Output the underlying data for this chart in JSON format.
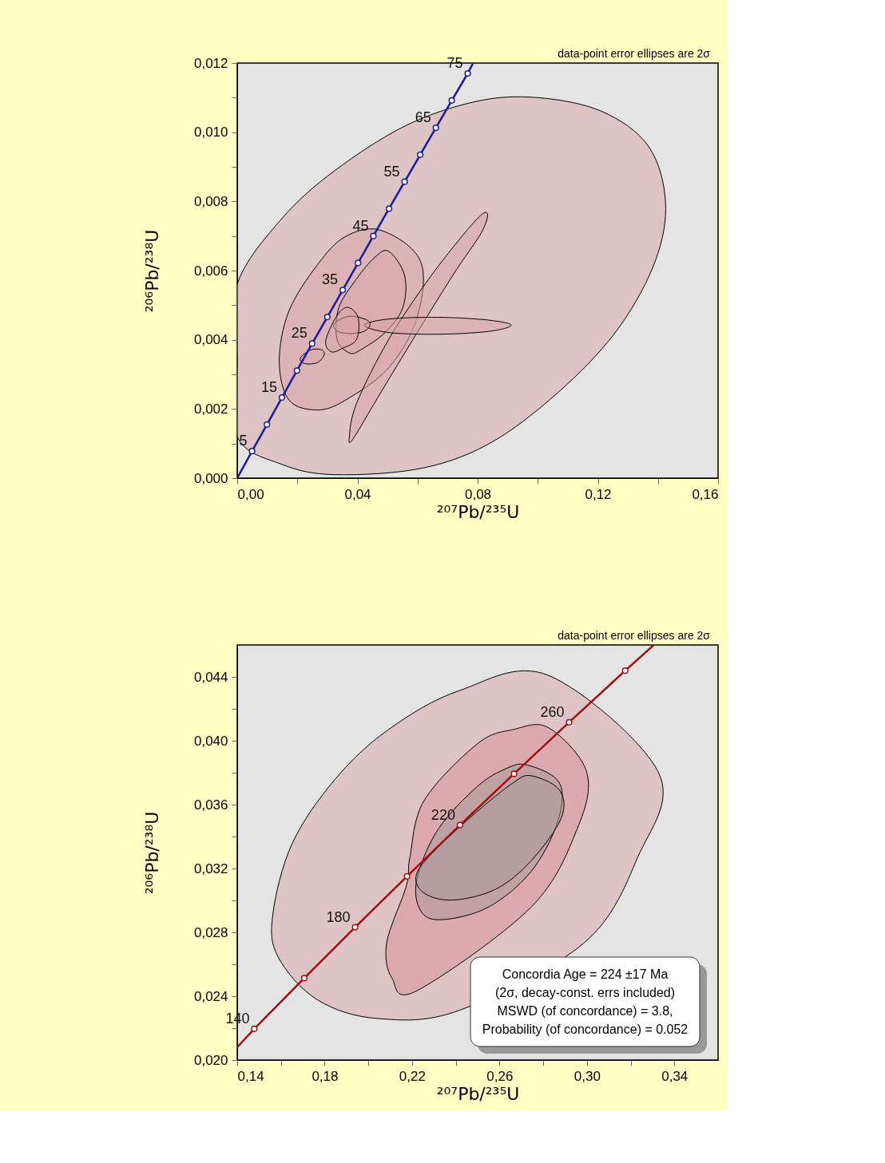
{
  "chart_data": [
    {
      "type": "scatter",
      "xlabel": "²⁰⁷Pb/²³⁵U",
      "ylabel": "²⁰⁶Pb/²³⁸U",
      "xlim": [
        0,
        0.16
      ],
      "ylim": [
        0,
        0.012
      ],
      "xticks": [
        {
          "value": 0,
          "label": "0,00"
        },
        {
          "value": 0.02,
          "label": null
        },
        {
          "value": 0.04,
          "label": "0,04"
        },
        {
          "value": 0.06,
          "label": null
        },
        {
          "value": 0.08,
          "label": "0,08"
        },
        {
          "value": 0.1,
          "label": null
        },
        {
          "value": 0.12,
          "label": "0,12"
        },
        {
          "value": 0.14,
          "label": null
        },
        {
          "value": 0.16,
          "label": "0,16"
        }
      ],
      "yticks": [
        {
          "value": 0,
          "label": "0,000"
        },
        {
          "value": 0.001,
          "label": null
        },
        {
          "value": 0.002,
          "label": "0,002"
        },
        {
          "value": 0.003,
          "label": null
        },
        {
          "value": 0.004,
          "label": "0,004"
        },
        {
          "value": 0.005,
          "label": null
        },
        {
          "value": 0.006,
          "label": "0,006"
        },
        {
          "value": 0.007,
          "label": null
        },
        {
          "value": 0.008,
          "label": "0,008"
        },
        {
          "value": 0.009,
          "label": null
        },
        {
          "value": 0.01,
          "label": "0,010"
        },
        {
          "value": 0.011,
          "label": null
        },
        {
          "value": 0.012,
          "label": "0,012"
        }
      ],
      "series": [
        {
          "type": "area",
          "color": "#d9a3a7",
          "x": [
            0,
            0.0148,
            0.0326,
            0.0563,
            0.08,
            0.1001,
            0.1214,
            0.1368,
            0.1425,
            0.1392,
            0.1274,
            0.1096,
            0.0859,
            0.0622,
            0.0326,
            0.0148,
            0,
            0
          ],
          "values": [
            0.0056,
            0.0075,
            0.0089,
            0.0102,
            0.0109,
            0.011,
            0.0106,
            0.0096,
            0.008,
            0.0063,
            0.0044,
            0.0027,
            0.0011,
            0.0003,
            0.0001,
            0.0004,
            0.0012,
            0.0034
          ]
        },
        {
          "type": "area",
          "color": "#d9a3a7",
          "x": [
            0.048,
            0.061,
            0.0598,
            0.0504,
            0.0361,
            0.0267,
            0.0172,
            0.014,
            0.0172,
            0.0267,
            0.0361
          ],
          "values": [
            0.00716,
            0.00627,
            0.00462,
            0.00319,
            0.00226,
            0.00197,
            0.00226,
            0.00339,
            0.00483,
            0.00617,
            0.00699
          ]
        },
        {
          "type": "area",
          "color": "#d9a3a7",
          "x": [
            0.0504,
            0.0557,
            0.0551,
            0.0492,
            0.0409,
            0.0373,
            0.0332,
            0.0338,
            0.0397,
            0.0456
          ],
          "values": [
            0.00656,
            0.00586,
            0.00493,
            0.00421,
            0.0037,
            0.00362,
            0.00401,
            0.00493,
            0.00576,
            0.00637
          ]
        },
        {
          "type": "area",
          "color": "#d9a3a7",
          "x": [
            0.0832,
            0.0812,
            0.0717,
            0.0563,
            0.0456,
            0.0385,
            0.0373,
            0.0397,
            0.0504,
            0.0646,
            0.0788
          ],
          "values": [
            0.00766,
            0.00709,
            0.00586,
            0.0037,
            0.00216,
            0.00113,
            0.00118,
            0.00216,
            0.00401,
            0.00586,
            0.0074
          ]
        },
        {
          "type": "area",
          "color": "#d9a3a7",
          "x": [
            0.0423,
            0.0504,
            0.0669,
            0.0835,
            0.0912,
            0.0835,
            0.0669,
            0.0504
          ],
          "values": [
            0.00442,
            0.0046,
            0.00465,
            0.00457,
            0.00442,
            0.00424,
            0.00416,
            0.00421
          ]
        },
        {
          "type": "area",
          "color": "#d9a3a7",
          "x": [
            0.032,
            0.035,
            0.0385,
            0.0432,
            0.0442,
            0.0421,
            0.0379,
            0.0338
          ],
          "values": [
            0.00442,
            0.00462,
            0.00468,
            0.00457,
            0.00442,
            0.00424,
            0.00418,
            0.00423
          ]
        },
        {
          "type": "area",
          "color": "#d9a3a7",
          "x": [
            0.0373,
            0.0403,
            0.0397,
            0.035,
            0.0314,
            0.0294,
            0.0314,
            0.0344
          ],
          "values": [
            0.00493,
            0.00462,
            0.00401,
            0.00375,
            0.00365,
            0.00391,
            0.00442,
            0.00483
          ]
        },
        {
          "type": "area",
          "color": "#d9a3a7",
          "x": [
            0.021,
            0.0243,
            0.0278,
            0.029,
            0.0267,
            0.0225
          ],
          "values": [
            0.00347,
            0.0037,
            0.00372,
            0.00358,
            0.00334,
            0.00331
          ]
        },
        {
          "type": "line",
          "color": "#1a1a9c",
          "marker": "none",
          "x": [
            0,
            0.00494,
            0.0099,
            0.01488,
            0.01989,
            0.02493,
            0.03,
            0.0351,
            0.0402,
            0.0453,
            0.0505,
            0.0557,
            0.0609,
            0.0661,
            0.0714,
            0.0767,
            0.0785
          ],
          "values": [
            0,
            0.00078,
            0.00155,
            0.00233,
            0.00311,
            0.00389,
            0.00466,
            0.00544,
            0.00622,
            0.007,
            0.00779,
            0.00857,
            0.00935,
            0.01013,
            0.01092,
            0.0117,
            0.012
          ]
        },
        {
          "type": "scatter",
          "color": "#1a1a9c",
          "marker": "circle",
          "x": [
            0.00494,
            0.0099,
            0.01488,
            0.01989,
            0.02493,
            0.03,
            0.0351,
            0.0402,
            0.0453,
            0.0505,
            0.0557,
            0.0609,
            0.0661,
            0.0714,
            0.0767
          ],
          "values": [
            0.00078,
            0.00155,
            0.00233,
            0.00311,
            0.00389,
            0.00466,
            0.00544,
            0.00622,
            0.007,
            0.00779,
            0.00857,
            0.00935,
            0.01013,
            0.01092,
            0.0117
          ]
        }
      ],
      "annotations": [
        "data-point error ellipses are 2σ",
        {
          "text": "5",
          "x": 0.00494,
          "y": 0.00078
        },
        {
          "text": "15",
          "x": 0.01488,
          "y": 0.00233
        },
        {
          "text": "25",
          "x": 0.02493,
          "y": 0.00389
        },
        {
          "text": "35",
          "x": 0.0351,
          "y": 0.00544
        },
        {
          "text": "45",
          "x": 0.0453,
          "y": 0.007
        },
        {
          "text": "55",
          "x": 0.0557,
          "y": 0.00857
        },
        {
          "text": "65",
          "x": 0.0661,
          "y": 0.01013
        },
        {
          "text": "75",
          "x": 0.0767,
          "y": 0.0117
        }
      ]
    },
    {
      "type": "scatter",
      "xlabel": "²⁰⁷Pb/²³⁵U",
      "ylabel": "²⁰⁶Pb/²³⁸U",
      "xlim": [
        0.14,
        0.36
      ],
      "ylim": [
        0.02,
        0.046
      ],
      "xticks": [
        {
          "value": 0.14,
          "label": "0,14"
        },
        {
          "value": 0.16,
          "label": null
        },
        {
          "value": 0.18,
          "label": "0,18"
        },
        {
          "value": 0.2,
          "label": null
        },
        {
          "value": 0.22,
          "label": "0,22"
        },
        {
          "value": 0.24,
          "label": null
        },
        {
          "value": 0.26,
          "label": "0,26"
        },
        {
          "value": 0.28,
          "label": null
        },
        {
          "value": 0.3,
          "label": "0,30"
        },
        {
          "value": 0.32,
          "label": null
        },
        {
          "value": 0.34,
          "label": "0,34"
        }
      ],
      "yticks": [
        {
          "value": 0.02,
          "label": "0,020"
        },
        {
          "value": 0.022,
          "label": null
        },
        {
          "value": 0.024,
          "label": "0,024"
        },
        {
          "value": 0.026,
          "label": null
        },
        {
          "value": 0.028,
          "label": "0,028"
        },
        {
          "value": 0.03,
          "label": null
        },
        {
          "value": 0.032,
          "label": "0,032"
        },
        {
          "value": 0.034,
          "label": null
        },
        {
          "value": 0.036,
          "label": "0,036"
        },
        {
          "value": 0.038,
          "label": null
        },
        {
          "value": 0.04,
          "label": "0,040"
        },
        {
          "value": 0.042,
          "label": null
        },
        {
          "value": 0.044,
          "label": "0,044"
        }
      ],
      "series": [
        {
          "type": "area",
          "color": "#d9a3a7",
          "x": [
            0.2825,
            0.3327,
            0.3232,
            0.2988,
            0.2418,
            0.2043,
            0.1766,
            0.1587,
            0.1563,
            0.1652,
            0.1848,
            0.2092,
            0.2418
          ],
          "values": [
            0.04409,
            0.03803,
            0.03269,
            0.02735,
            0.02312,
            0.0226,
            0.02378,
            0.02646,
            0.02913,
            0.03358,
            0.03759,
            0.0407,
            0.04315
          ]
        },
        {
          "type": "area",
          "color": "#d98e95",
          "x": [
            0.2825,
            0.2999,
            0.2955,
            0.2744,
            0.2222,
            0.2108,
            0.2084,
            0.2174,
            0.219,
            0.2255,
            0.2499,
            0.2662
          ],
          "values": [
            0.04081,
            0.03803,
            0.03447,
            0.02957,
            0.02434,
            0.02512,
            0.02735,
            0.03091,
            0.03269,
            0.03625,
            0.03981,
            0.0407
          ]
        },
        {
          "type": "area",
          "color": "#a89a9c",
          "x": [
            0.2727,
            0.2874,
            0.2866,
            0.2744,
            0.2548,
            0.2336,
            0.2239,
            0.2222,
            0.232,
            0.2499,
            0.2629
          ],
          "values": [
            0.03848,
            0.03736,
            0.03492,
            0.0318,
            0.02957,
            0.02879,
            0.02935,
            0.03135,
            0.03447,
            0.03714,
            0.03825
          ]
        },
        {
          "type": "area",
          "color": "#a89a9c",
          "x": [
            0.2744,
            0.2874,
            0.2882,
            0.2744,
            0.2581,
            0.2385,
            0.2255,
            0.2219,
            0.2304,
            0.2499,
            0.2662
          ],
          "values": [
            0.03781,
            0.03692,
            0.03514,
            0.03247,
            0.03069,
            0.03002,
            0.03046,
            0.03158,
            0.03313,
            0.03558,
            0.03736
          ]
        },
        {
          "type": "line",
          "color": "#a01010",
          "marker": "none",
          "x": [
            0.14,
            0.14783,
            0.17068,
            0.19395,
            0.2177,
            0.24193,
            0.26664,
            0.29184,
            0.31752,
            0.3306
          ],
          "values": [
            0.0208,
            0.02196,
            0.02513,
            0.02832,
            0.03151,
            0.03472,
            0.03793,
            0.04116,
            0.04439,
            0.046
          ]
        },
        {
          "type": "scatter",
          "color": "#a01010",
          "marker": "circle",
          "x": [
            0.14783,
            0.17068,
            0.19395,
            0.2177,
            0.24193,
            0.26664,
            0.29184,
            0.31752
          ],
          "values": [
            0.02196,
            0.02513,
            0.02832,
            0.03151,
            0.03472,
            0.03793,
            0.04116,
            0.04439
          ]
        }
      ],
      "annotations": [
        "data-point error ellipses are 2σ",
        "Concordia Age = 224 ±17 Ma",
        "(2σ, decay-const. errs included)",
        "MSWD (of concordance) = 3.8,",
        "Probability (of concordance) = 0.052",
        {
          "text": "140",
          "x": 0.14783,
          "y": 0.02196
        },
        {
          "text": "180",
          "x": 0.19395,
          "y": 0.02832
        },
        {
          "text": "220",
          "x": 0.24193,
          "y": 0.03472
        },
        {
          "text": "260",
          "x": 0.29184,
          "y": 0.04116
        }
      ]
    }
  ]
}
